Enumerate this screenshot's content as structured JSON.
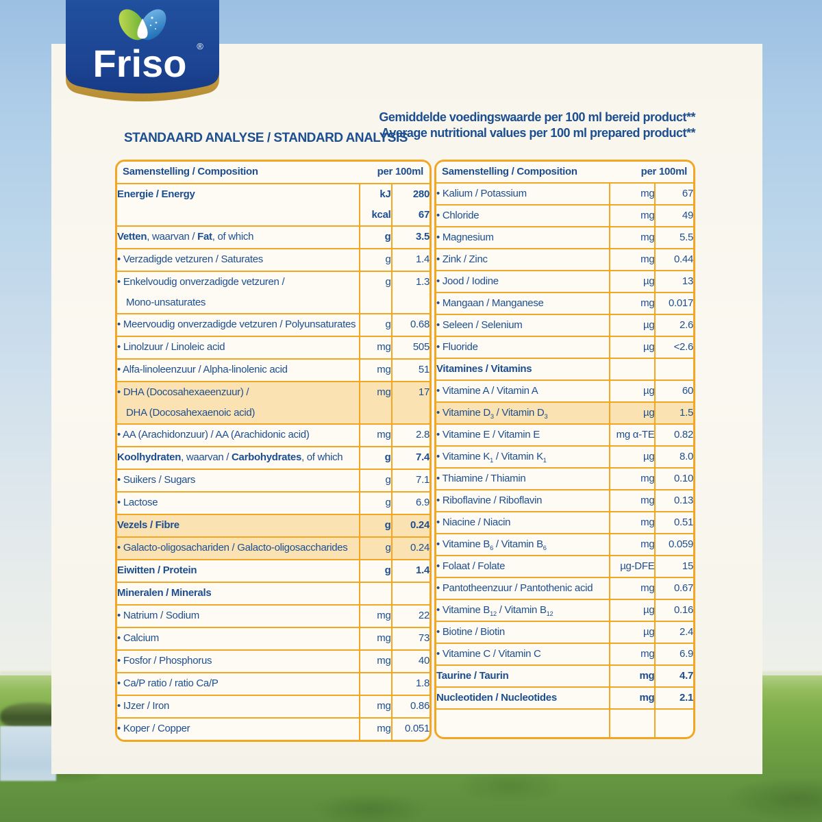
{
  "page": {
    "title": "STANDAARD ANALYSE / STANDARD ANALYSIS",
    "note_nl": "Gemiddelde voedingswaarde per 100 ml bereid product**",
    "note_en": "Average nutritional values per 100 ml prepared product**"
  },
  "logo": {
    "brand": "Friso",
    "registered": "®",
    "icon": "leaf-heart-drop-icon"
  },
  "colors": {
    "blue": "#1C4E90",
    "orange": "#F2A622",
    "peach": "#FBE2B3",
    "card": "#F8F6ED",
    "cell": "#FDFBF4",
    "gold": "#C59B3C",
    "logoblue": "#1D4796"
  },
  "tables": [
    {
      "name": "composition-energy-fats-carbs-minerals",
      "header": {
        "label": "Samenstelling / Composition",
        "per": "per 100ml"
      },
      "rows": [
        {
          "label": [
            "Energie / Energy"
          ],
          "unit": [
            "kJ",
            "kcal"
          ],
          "value": [
            "280",
            "67"
          ],
          "bold": true
        },
        {
          "label": [
            "**Vetten**, waarvan / **Fat**, of which"
          ],
          "unit": "g",
          "value": "3.5",
          "vb": true
        },
        {
          "label": [
            "• Verzadigde vetzuren / Saturates"
          ],
          "unit": "g",
          "value": "1.4"
        },
        {
          "label": [
            "• Enkelvoudig onverzadigde vetzuren /",
            "Mono-unsaturates"
          ],
          "unit": "g",
          "value": "1.3"
        },
        {
          "label": [
            "• Meervoudig onverzadigde vetzuren / Polyunsaturates"
          ],
          "unit": "g",
          "value": "0.68"
        },
        {
          "label": [
            "• Linolzuur / Linoleic acid"
          ],
          "unit": "mg",
          "value": "505"
        },
        {
          "label": [
            "• Alfa-linoleenzuur / Alpha-linolenic acid"
          ],
          "unit": "mg",
          "value": "51"
        },
        {
          "label": [
            "• DHA (Docosahexaeenzuur) /",
            "DHA (Docosahexaenoic acid)"
          ],
          "unit": "mg",
          "value": "17",
          "hl": true
        },
        {
          "label": [
            "• AA (Arachidonzuur) / AA (Arachidonic acid)"
          ],
          "unit": "mg",
          "value": "2.8"
        },
        {
          "label": [
            "**Koolhydraten**, waarvan / **Carbohydrates**, of which"
          ],
          "unit": "g",
          "value": "7.4",
          "vb": true
        },
        {
          "label": [
            "• Suikers / Sugars"
          ],
          "unit": "g",
          "value": "7.1"
        },
        {
          "label": [
            "• Lactose"
          ],
          "unit": "g",
          "value": "6.9"
        },
        {
          "label": [
            "Vezels / Fibre"
          ],
          "unit": "g",
          "value": "0.24",
          "bold": true,
          "hl": true
        },
        {
          "label": [
            "• Galacto-oligosachariden / Galacto-oligosaccharides"
          ],
          "unit": "g",
          "value": "0.24",
          "hl": true
        },
        {
          "label": [
            "Eiwitten / Protein"
          ],
          "unit": "g",
          "value": "1.4",
          "bold": true
        },
        {
          "label": [
            "Mineralen / Minerals"
          ],
          "unit": "",
          "value": "",
          "bold": true
        },
        {
          "label": [
            "• Natrium / Sodium"
          ],
          "unit": "mg",
          "value": "22"
        },
        {
          "label": [
            "• Calcium"
          ],
          "unit": "mg",
          "value": "73"
        },
        {
          "label": [
            "• Fosfor / Phosphorus"
          ],
          "unit": "mg",
          "value": "40"
        },
        {
          "label": [
            "• Ca/P ratio / ratio Ca/P"
          ],
          "unit": "",
          "value": "1.8"
        },
        {
          "label": [
            "• IJzer / Iron"
          ],
          "unit": "mg",
          "value": "0.86"
        },
        {
          "label": [
            "• Koper / Copper"
          ],
          "unit": "mg",
          "value": "0.051"
        }
      ]
    },
    {
      "name": "composition-minerals-vitamins",
      "header": {
        "label": "Samenstelling / Composition",
        "per": "per 100ml"
      },
      "rows": [
        {
          "label": [
            "• Kalium / Potassium"
          ],
          "unit": "mg",
          "value": "67"
        },
        {
          "label": [
            "• Chloride"
          ],
          "unit": "mg",
          "value": "49"
        },
        {
          "label": [
            "• Magnesium"
          ],
          "unit": "mg",
          "value": "5.5"
        },
        {
          "label": [
            "• Zink / Zinc"
          ],
          "unit": "mg",
          "value": "0.44"
        },
        {
          "label": [
            "• Jood / Iodine"
          ],
          "unit": "µg",
          "value": "13"
        },
        {
          "label": [
            "• Mangaan / Manganese"
          ],
          "unit": "mg",
          "value": "0.017"
        },
        {
          "label": [
            "• Seleen / Selenium"
          ],
          "unit": "µg",
          "value": "2.6"
        },
        {
          "label": [
            "• Fluoride"
          ],
          "unit": "µg",
          "value": "<2.6"
        },
        {
          "label": [
            "Vitamines / Vitamins"
          ],
          "unit": "",
          "value": "",
          "bold": true
        },
        {
          "label": [
            "• Vitamine A / Vitamin A"
          ],
          "unit": "µg",
          "value": "60"
        },
        {
          "label": [
            "• Vitamine D{3} / Vitamin D{3}"
          ],
          "unit": "µg",
          "value": "1.5",
          "hl": true
        },
        {
          "label": [
            "• Vitamine E / Vitamin E"
          ],
          "unit": "mg α-TE",
          "value": "0.82"
        },
        {
          "label": [
            "• Vitamine K{1} / Vitamin K{1}"
          ],
          "unit": "µg",
          "value": "8.0"
        },
        {
          "label": [
            "• Thiamine / Thiamin"
          ],
          "unit": "mg",
          "value": "0.10"
        },
        {
          "label": [
            "• Riboflavine / Riboflavin"
          ],
          "unit": "mg",
          "value": "0.13"
        },
        {
          "label": [
            "• Niacine / Niacin"
          ],
          "unit": "mg",
          "value": "0.51"
        },
        {
          "label": [
            "• Vitamine B{6} / Vitamin B{6}"
          ],
          "unit": "mg",
          "value": "0.059"
        },
        {
          "label": [
            "• Folaat / Folate"
          ],
          "unit": "µg-DFE",
          "value": "15"
        },
        {
          "label": [
            "• Pantotheenzuur / Pantothenic acid"
          ],
          "unit": "mg",
          "value": "0.67"
        },
        {
          "label": [
            "• Vitamine B{12} / Vitamin B{12}"
          ],
          "unit": "µg",
          "value": "0.16"
        },
        {
          "label": [
            "• Biotine / Biotin"
          ],
          "unit": "µg",
          "value": "2.4"
        },
        {
          "label": [
            "• Vitamine C / Vitamin C"
          ],
          "unit": "mg",
          "value": "6.9"
        },
        {
          "label": [
            "Taurine / Taurin"
          ],
          "unit": "mg",
          "value": "4.7",
          "bold": true
        },
        {
          "label": [
            "Nucleotiden / Nucleotides"
          ],
          "unit": "mg",
          "value": "2.1",
          "bold": true
        },
        {
          "label": [
            ""
          ],
          "unit": "",
          "value": "",
          "h": 40
        }
      ]
    }
  ]
}
